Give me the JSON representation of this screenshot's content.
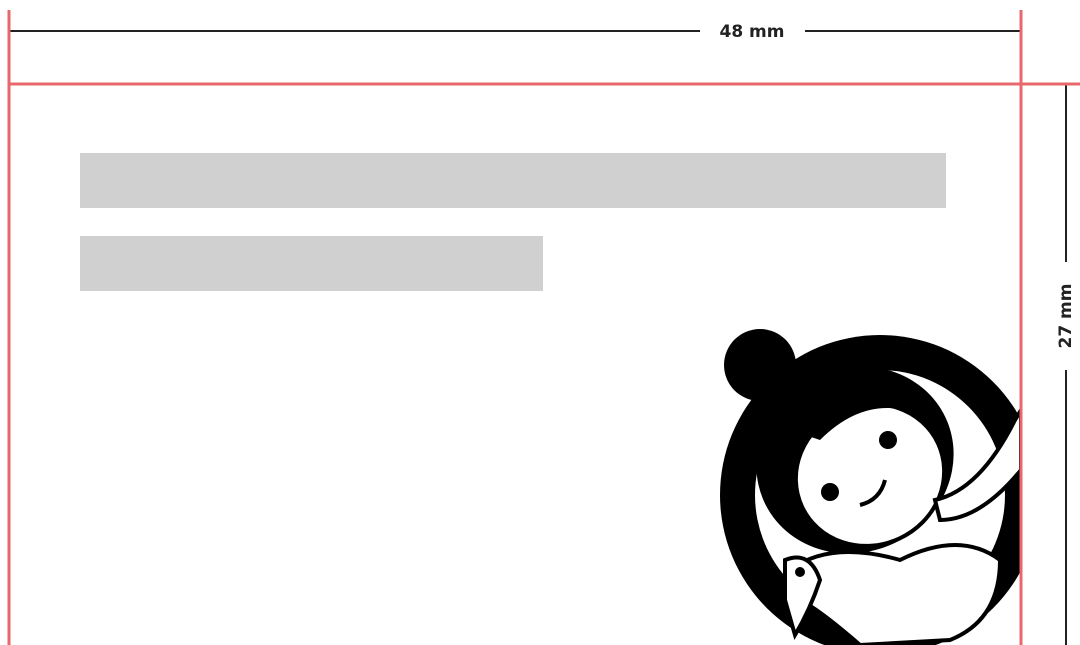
{
  "dimensions": {
    "width": "48 mm",
    "height": "27 mm"
  }
}
